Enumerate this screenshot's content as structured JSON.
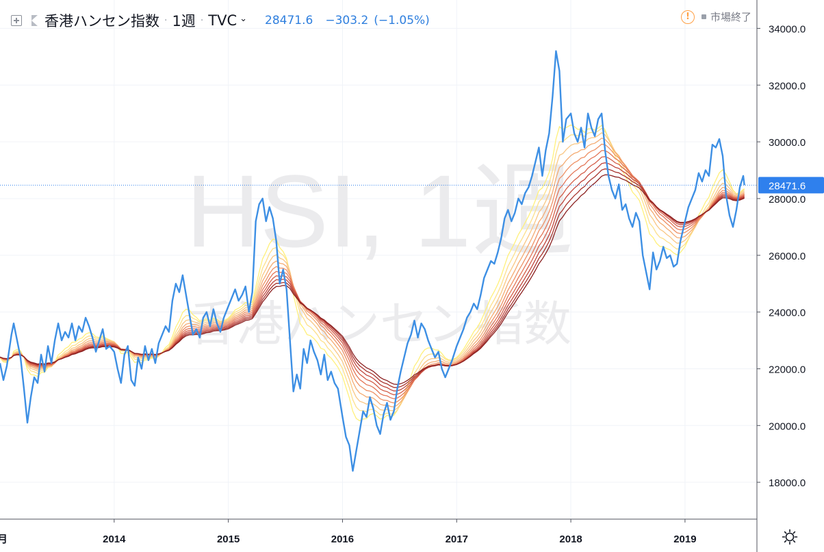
{
  "header": {
    "symbol_title": "香港ハンセン指数",
    "separator": "·",
    "interval": "1週",
    "exchange": "TVC",
    "exchange_chevron": "⌄",
    "last_price": "28471.6",
    "change": "−303.2",
    "change_pct": "(−1.05%)",
    "market_status": "市場終了",
    "alert_glyph": "!"
  },
  "watermark": {
    "line1": "HSI, 1週",
    "line2": "香港ハンセン指数"
  },
  "price_axis": {
    "labels": [
      "34000.0",
      "32000.0",
      "30000.0",
      "28000.0",
      "26000.0",
      "24000.0",
      "22000.0",
      "20000.0",
      "18000.0"
    ],
    "current_label": "28471.6"
  },
  "time_axis": {
    "partial_label": "月",
    "labels": [
      "2014",
      "2015",
      "2016",
      "2017",
      "2018",
      "2019"
    ]
  },
  "colors": {
    "price_line": "#3d8fe4",
    "current_price_badge": "#2f80ed",
    "ribbon_colors": [
      "#fff07a",
      "#fde08a",
      "#f9c784",
      "#f4ab72",
      "#ee9165",
      "#e37658",
      "#d45f4a",
      "#c0453c",
      "#a8342e",
      "#8b2020"
    ],
    "grid": "#f0f3f8",
    "axis_text": "#131722"
  },
  "chart_data": {
    "type": "line",
    "title": "香港ハンセン指数",
    "x_unit": "year",
    "ylim": [
      16700,
      35000
    ],
    "xlim": [
      2013.0,
      2019.63
    ],
    "grid": true,
    "series": [
      {
        "name": "HSI",
        "points": [
          [
            2013.0,
            22200
          ],
          [
            2013.03,
            21600
          ],
          [
            2013.06,
            22100
          ],
          [
            2013.1,
            23200
          ],
          [
            2013.12,
            23600
          ],
          [
            2013.15,
            23000
          ],
          [
            2013.18,
            22400
          ],
          [
            2013.21,
            21300
          ],
          [
            2013.24,
            20100
          ],
          [
            2013.27,
            21000
          ],
          [
            2013.3,
            21700
          ],
          [
            2013.33,
            21500
          ],
          [
            2013.36,
            22500
          ],
          [
            2013.39,
            21900
          ],
          [
            2013.42,
            22800
          ],
          [
            2013.45,
            22200
          ],
          [
            2013.48,
            23000
          ],
          [
            2013.51,
            23600
          ],
          [
            2013.54,
            23000
          ],
          [
            2013.57,
            23300
          ],
          [
            2013.6,
            23100
          ],
          [
            2013.63,
            23600
          ],
          [
            2013.66,
            23000
          ],
          [
            2013.69,
            23500
          ],
          [
            2013.72,
            23300
          ],
          [
            2013.75,
            23800
          ],
          [
            2013.78,
            23500
          ],
          [
            2013.81,
            23100
          ],
          [
            2013.84,
            22600
          ],
          [
            2013.87,
            23000
          ],
          [
            2013.9,
            23400
          ],
          [
            2013.93,
            22700
          ],
          [
            2013.96,
            22800
          ],
          [
            2014.0,
            22600
          ],
          [
            2014.03,
            22000
          ],
          [
            2014.06,
            21500
          ],
          [
            2014.09,
            22500
          ],
          [
            2014.12,
            22800
          ],
          [
            2014.15,
            21600
          ],
          [
            2014.18,
            21400
          ],
          [
            2014.21,
            22400
          ],
          [
            2014.24,
            22000
          ],
          [
            2014.27,
            22800
          ],
          [
            2014.3,
            22300
          ],
          [
            2014.33,
            22700
          ],
          [
            2014.36,
            22200
          ],
          [
            2014.39,
            22900
          ],
          [
            2014.42,
            23200
          ],
          [
            2014.45,
            23500
          ],
          [
            2014.48,
            23300
          ],
          [
            2014.51,
            24400
          ],
          [
            2014.54,
            25000
          ],
          [
            2014.57,
            24700
          ],
          [
            2014.6,
            25300
          ],
          [
            2014.63,
            24600
          ],
          [
            2014.66,
            23900
          ],
          [
            2014.69,
            23200
          ],
          [
            2014.72,
            23400
          ],
          [
            2014.75,
            23100
          ],
          [
            2014.78,
            23800
          ],
          [
            2014.81,
            24000
          ],
          [
            2014.84,
            23500
          ],
          [
            2014.87,
            24100
          ],
          [
            2014.9,
            23600
          ],
          [
            2014.93,
            23300
          ],
          [
            2014.96,
            23800
          ],
          [
            2015.0,
            24200
          ],
          [
            2015.03,
            24500
          ],
          [
            2015.06,
            24800
          ],
          [
            2015.09,
            24400
          ],
          [
            2015.12,
            24600
          ],
          [
            2015.15,
            24900
          ],
          [
            2015.18,
            24000
          ],
          [
            2015.21,
            24700
          ],
          [
            2015.24,
            27200
          ],
          [
            2015.27,
            27800
          ],
          [
            2015.3,
            28000
          ],
          [
            2015.33,
            27200
          ],
          [
            2015.36,
            27700
          ],
          [
            2015.39,
            27300
          ],
          [
            2015.42,
            26500
          ],
          [
            2015.45,
            25000
          ],
          [
            2015.48,
            25500
          ],
          [
            2015.51,
            24800
          ],
          [
            2015.54,
            23000
          ],
          [
            2015.57,
            21200
          ],
          [
            2015.6,
            21800
          ],
          [
            2015.63,
            21300
          ],
          [
            2015.66,
            22700
          ],
          [
            2015.69,
            22200
          ],
          [
            2015.72,
            23000
          ],
          [
            2015.75,
            22600
          ],
          [
            2015.78,
            22300
          ],
          [
            2015.81,
            21800
          ],
          [
            2015.84,
            22500
          ],
          [
            2015.87,
            21600
          ],
          [
            2015.9,
            21900
          ],
          [
            2015.93,
            21500
          ],
          [
            2015.96,
            21300
          ],
          [
            2016.0,
            20300
          ],
          [
            2016.03,
            19600
          ],
          [
            2016.06,
            19300
          ],
          [
            2016.09,
            18400
          ],
          [
            2016.12,
            19100
          ],
          [
            2016.15,
            19800
          ],
          [
            2016.18,
            20500
          ],
          [
            2016.21,
            20300
          ],
          [
            2016.24,
            21000
          ],
          [
            2016.27,
            20600
          ],
          [
            2016.3,
            20000
          ],
          [
            2016.33,
            19700
          ],
          [
            2016.36,
            20400
          ],
          [
            2016.39,
            20800
          ],
          [
            2016.42,
            20200
          ],
          [
            2016.45,
            20500
          ],
          [
            2016.48,
            21300
          ],
          [
            2016.51,
            21900
          ],
          [
            2016.54,
            22400
          ],
          [
            2016.57,
            22900
          ],
          [
            2016.6,
            23200
          ],
          [
            2016.63,
            23700
          ],
          [
            2016.66,
            23100
          ],
          [
            2016.69,
            23600
          ],
          [
            2016.72,
            23400
          ],
          [
            2016.75,
            23000
          ],
          [
            2016.78,
            22700
          ],
          [
            2016.81,
            22400
          ],
          [
            2016.84,
            22600
          ],
          [
            2016.87,
            22000
          ],
          [
            2016.9,
            21700
          ],
          [
            2016.93,
            22000
          ],
          [
            2016.96,
            22300
          ],
          [
            2017.0,
            22800
          ],
          [
            2017.03,
            23100
          ],
          [
            2017.06,
            23400
          ],
          [
            2017.09,
            23800
          ],
          [
            2017.12,
            24000
          ],
          [
            2017.15,
            24300
          ],
          [
            2017.18,
            24100
          ],
          [
            2017.21,
            24600
          ],
          [
            2017.24,
            25200
          ],
          [
            2017.27,
            25500
          ],
          [
            2017.3,
            25800
          ],
          [
            2017.33,
            25700
          ],
          [
            2017.36,
            26100
          ],
          [
            2017.39,
            26600
          ],
          [
            2017.42,
            27300
          ],
          [
            2017.45,
            27600
          ],
          [
            2017.48,
            27200
          ],
          [
            2017.51,
            27500
          ],
          [
            2017.54,
            28000
          ],
          [
            2017.57,
            27800
          ],
          [
            2017.6,
            28200
          ],
          [
            2017.63,
            28400
          ],
          [
            2017.66,
            28800
          ],
          [
            2017.69,
            29300
          ],
          [
            2017.72,
            29800
          ],
          [
            2017.75,
            28800
          ],
          [
            2017.78,
            29700
          ],
          [
            2017.81,
            30300
          ],
          [
            2017.84,
            31600
          ],
          [
            2017.87,
            33200
          ],
          [
            2017.9,
            32500
          ],
          [
            2017.93,
            30000
          ],
          [
            2017.96,
            30800
          ],
          [
            2018.0,
            31000
          ],
          [
            2018.03,
            30300
          ],
          [
            2018.06,
            30000
          ],
          [
            2018.09,
            30500
          ],
          [
            2018.12,
            29800
          ],
          [
            2018.15,
            31000
          ],
          [
            2018.18,
            30500
          ],
          [
            2018.21,
            30200
          ],
          [
            2018.24,
            30800
          ],
          [
            2018.27,
            31000
          ],
          [
            2018.3,
            29700
          ],
          [
            2018.33,
            28800
          ],
          [
            2018.36,
            28300
          ],
          [
            2018.39,
            28000
          ],
          [
            2018.42,
            28500
          ],
          [
            2018.45,
            27600
          ],
          [
            2018.48,
            27800
          ],
          [
            2018.51,
            27300
          ],
          [
            2018.54,
            27000
          ],
          [
            2018.57,
            27500
          ],
          [
            2018.6,
            27200
          ],
          [
            2018.63,
            26000
          ],
          [
            2018.66,
            25400
          ],
          [
            2018.69,
            24800
          ],
          [
            2018.72,
            26100
          ],
          [
            2018.75,
            25500
          ],
          [
            2018.78,
            25800
          ],
          [
            2018.81,
            26300
          ],
          [
            2018.84,
            25900
          ],
          [
            2018.87,
            26000
          ],
          [
            2018.9,
            25600
          ],
          [
            2018.93,
            25700
          ],
          [
            2018.96,
            26500
          ],
          [
            2019.0,
            27200
          ],
          [
            2019.03,
            27700
          ],
          [
            2019.06,
            28000
          ],
          [
            2019.09,
            28300
          ],
          [
            2019.12,
            28900
          ],
          [
            2019.15,
            28600
          ],
          [
            2019.18,
            29000
          ],
          [
            2019.21,
            28800
          ],
          [
            2019.24,
            29900
          ],
          [
            2019.27,
            29800
          ],
          [
            2019.3,
            30100
          ],
          [
            2019.33,
            29500
          ],
          [
            2019.36,
            28100
          ],
          [
            2019.39,
            27400
          ],
          [
            2019.42,
            27000
          ],
          [
            2019.45,
            27600
          ],
          [
            2019.48,
            28400
          ],
          [
            2019.51,
            28800
          ],
          [
            2019.52,
            28471.6
          ]
        ]
      }
    ]
  }
}
